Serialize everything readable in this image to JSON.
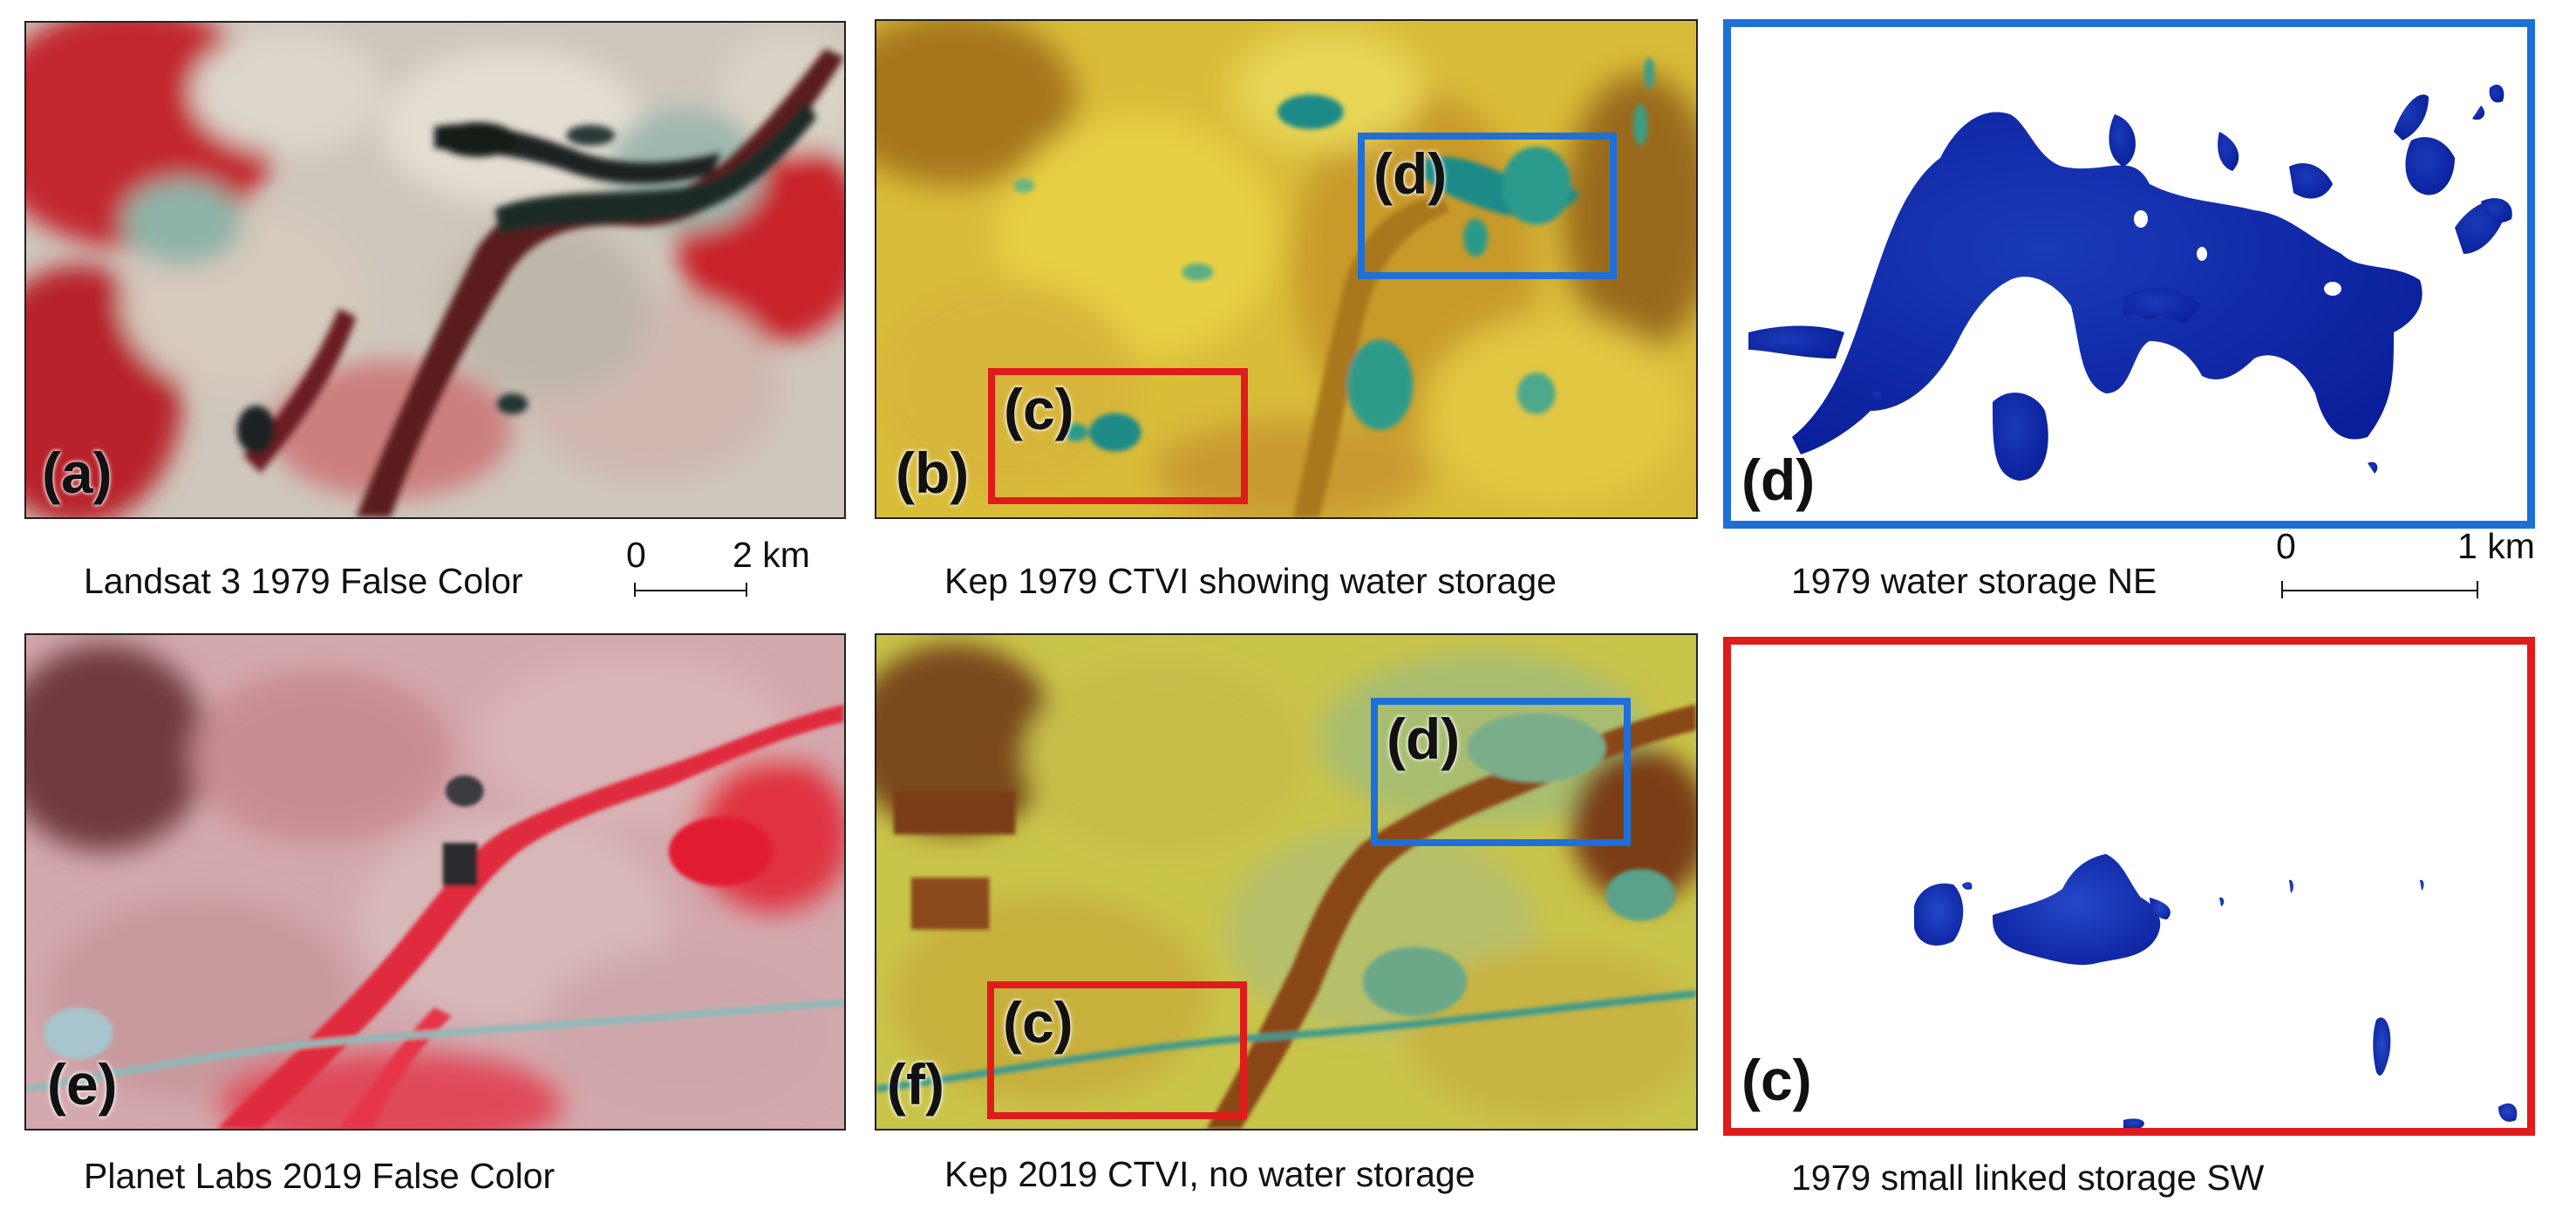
{
  "panels": {
    "a": {
      "label": "(a)",
      "caption": "Landsat 3  1979 False Color"
    },
    "b": {
      "label": "(b)",
      "caption": "Kep 1979  CTVI showing water storage",
      "box_c": "(c)",
      "box_d": "(d)"
    },
    "d": {
      "label": "(d)",
      "caption": "1979 water storage NE"
    },
    "e": {
      "label": "(e)",
      "caption": "Planet Labs  2019 False Color"
    },
    "f": {
      "label": "(f)",
      "caption": "Kep 2019 CTVI, no water storage",
      "box_c": "(c)",
      "box_d": "(d)"
    },
    "c": {
      "label": "(c)",
      "caption": "1979 small linked storage SW"
    }
  },
  "scalebars": {
    "left": {
      "start": "0",
      "end": "2 km"
    },
    "right": {
      "start": "0",
      "end": "1 km"
    }
  },
  "colors": {
    "highlight_ne": "#1e6fd8",
    "highlight_sw": "#e01b1b",
    "water_mask": "#0a1e9a",
    "vegetation_false_color": "#c81e2a",
    "ctvi_high": "#e6cf3a",
    "ctvi_water": "#1f8a86",
    "ctvi_low": "#8a4a14"
  }
}
